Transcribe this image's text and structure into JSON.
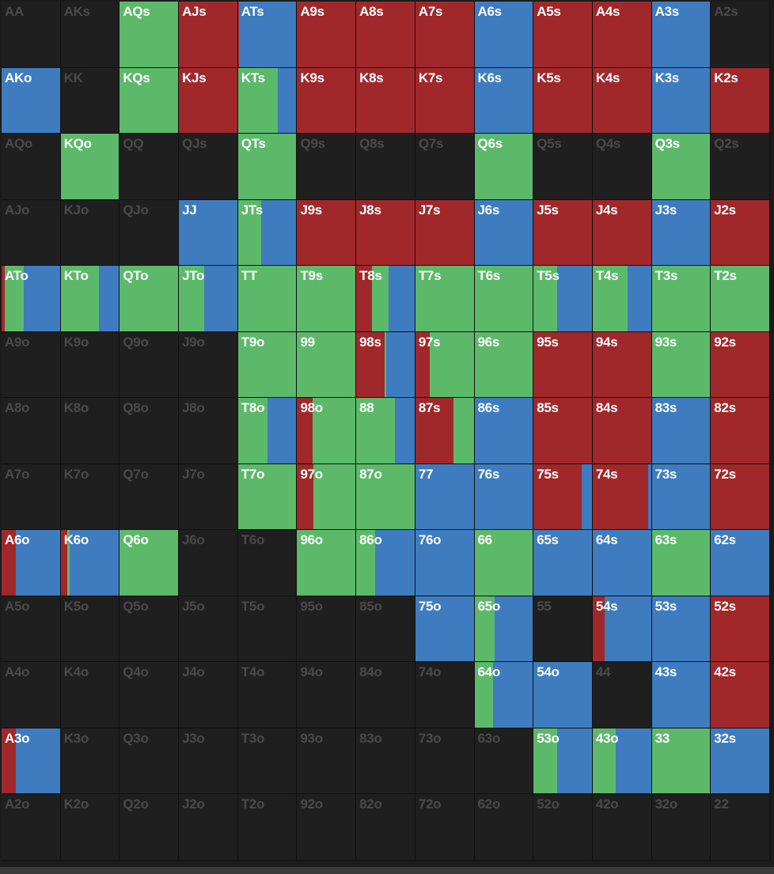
{
  "grid": {
    "colors": [
      "#a0282b",
      "#5cb96a",
      "#3e7cbf"
    ],
    "rows": [
      [
        {
          "hand": "AA"
        },
        {
          "hand": "AKs"
        },
        {
          "hand": "AQs",
          "mix": [
            0,
            100,
            0
          ]
        },
        {
          "hand": "AJs",
          "mix": [
            100,
            0,
            0
          ]
        },
        {
          "hand": "ATs",
          "mix": [
            2,
            0,
            98
          ]
        },
        {
          "hand": "A9s",
          "mix": [
            100,
            0,
            0
          ]
        },
        {
          "hand": "A8s",
          "mix": [
            100,
            0,
            0
          ]
        },
        {
          "hand": "A7s",
          "mix": [
            100,
            0,
            0
          ]
        },
        {
          "hand": "A6s",
          "mix": [
            0,
            0,
            100
          ]
        },
        {
          "hand": "A5s",
          "mix": [
            100,
            0,
            0
          ]
        },
        {
          "hand": "A4s",
          "mix": [
            100,
            0,
            0
          ]
        },
        {
          "hand": "A3s",
          "mix": [
            0,
            0,
            100
          ]
        },
        {
          "hand": "A2s"
        }
      ],
      [
        {
          "hand": "AKo",
          "mix": [
            0,
            0,
            100
          ]
        },
        {
          "hand": "KK"
        },
        {
          "hand": "KQs",
          "mix": [
            0,
            100,
            0
          ]
        },
        {
          "hand": "KJs",
          "mix": [
            100,
            0,
            0
          ]
        },
        {
          "hand": "KTs",
          "mix": [
            0,
            68,
            32
          ]
        },
        {
          "hand": "K9s",
          "mix": [
            100,
            0,
            0
          ]
        },
        {
          "hand": "K8s",
          "mix": [
            100,
            0,
            0
          ]
        },
        {
          "hand": "K7s",
          "mix": [
            100,
            0,
            0
          ]
        },
        {
          "hand": "K6s",
          "mix": [
            0,
            0,
            100
          ]
        },
        {
          "hand": "K5s",
          "mix": [
            100,
            0,
            0
          ]
        },
        {
          "hand": "K4s",
          "mix": [
            100,
            0,
            0
          ]
        },
        {
          "hand": "K3s",
          "mix": [
            0,
            0,
            100
          ]
        },
        {
          "hand": "K2s",
          "mix": [
            100,
            0,
            0
          ]
        }
      ],
      [
        {
          "hand": "AQo"
        },
        {
          "hand": "KQo",
          "mix": [
            0,
            100,
            0
          ]
        },
        {
          "hand": "QQ"
        },
        {
          "hand": "QJs"
        },
        {
          "hand": "QTs",
          "mix": [
            0,
            100,
            0
          ]
        },
        {
          "hand": "Q9s"
        },
        {
          "hand": "Q8s"
        },
        {
          "hand": "Q7s"
        },
        {
          "hand": "Q6s",
          "mix": [
            0,
            100,
            0
          ]
        },
        {
          "hand": "Q5s"
        },
        {
          "hand": "Q4s"
        },
        {
          "hand": "Q3s",
          "mix": [
            0,
            100,
            0
          ]
        },
        {
          "hand": "Q2s"
        }
      ],
      [
        {
          "hand": "AJo"
        },
        {
          "hand": "KJo"
        },
        {
          "hand": "QJo"
        },
        {
          "hand": "JJ",
          "mix": [
            0,
            0,
            100
          ]
        },
        {
          "hand": "JTs",
          "mix": [
            0,
            39,
            61
          ]
        },
        {
          "hand": "J9s",
          "mix": [
            100,
            0,
            0
          ]
        },
        {
          "hand": "J8s",
          "mix": [
            100,
            0,
            0
          ]
        },
        {
          "hand": "J7s",
          "mix": [
            100,
            0,
            0
          ]
        },
        {
          "hand": "J6s",
          "mix": [
            0,
            0,
            100
          ]
        },
        {
          "hand": "J5s",
          "mix": [
            100,
            0,
            0
          ]
        },
        {
          "hand": "J4s",
          "mix": [
            100,
            0,
            0
          ]
        },
        {
          "hand": "J3s",
          "mix": [
            0,
            0,
            100
          ]
        },
        {
          "hand": "J2s",
          "mix": [
            100,
            0,
            0
          ]
        }
      ],
      [
        {
          "hand": "ATo",
          "mix": [
            5,
            33,
            62
          ]
        },
        {
          "hand": "KTo",
          "mix": [
            0,
            66,
            34
          ]
        },
        {
          "hand": "QTo",
          "mix": [
            0,
            100,
            0
          ]
        },
        {
          "hand": "JTo",
          "mix": [
            0,
            44,
            56
          ]
        },
        {
          "hand": "TT",
          "mix": [
            0,
            100,
            0
          ]
        },
        {
          "hand": "T9s",
          "mix": [
            0,
            100,
            0
          ]
        },
        {
          "hand": "T8s",
          "mix": [
            27,
            29,
            44
          ]
        },
        {
          "hand": "T7s",
          "mix": [
            0,
            100,
            0
          ]
        },
        {
          "hand": "T6s",
          "mix": [
            0,
            100,
            0
          ]
        },
        {
          "hand": "T5s",
          "mix": [
            0,
            41,
            59
          ]
        },
        {
          "hand": "T4s",
          "mix": [
            0,
            60,
            40
          ]
        },
        {
          "hand": "T3s",
          "mix": [
            0,
            100,
            0
          ]
        },
        {
          "hand": "T2s",
          "mix": [
            0,
            100,
            0
          ]
        }
      ],
      [
        {
          "hand": "A9o"
        },
        {
          "hand": "K9o"
        },
        {
          "hand": "Q9o"
        },
        {
          "hand": "J9o"
        },
        {
          "hand": "T9o",
          "mix": [
            0,
            100,
            0
          ]
        },
        {
          "hand": "99",
          "mix": [
            0,
            100,
            0
          ]
        },
        {
          "hand": "98s",
          "mix": [
            48,
            4,
            48
          ]
        },
        {
          "hand": "97s",
          "mix": [
            25,
            75,
            0
          ]
        },
        {
          "hand": "96s",
          "mix": [
            0,
            100,
            0
          ]
        },
        {
          "hand": "95s",
          "mix": [
            100,
            0,
            0
          ]
        },
        {
          "hand": "94s",
          "mix": [
            100,
            0,
            0
          ]
        },
        {
          "hand": "93s",
          "mix": [
            0,
            100,
            0
          ]
        },
        {
          "hand": "92s",
          "mix": [
            100,
            0,
            0
          ]
        }
      ],
      [
        {
          "hand": "A8o"
        },
        {
          "hand": "K8o"
        },
        {
          "hand": "Q8o"
        },
        {
          "hand": "J8o"
        },
        {
          "hand": "T8o",
          "mix": [
            0,
            50,
            50
          ]
        },
        {
          "hand": "98o",
          "mix": [
            27,
            73,
            0
          ]
        },
        {
          "hand": "88",
          "mix": [
            0,
            66,
            34
          ]
        },
        {
          "hand": "87s",
          "mix": [
            65,
            35,
            0
          ]
        },
        {
          "hand": "86s",
          "mix": [
            0,
            0,
            100
          ]
        },
        {
          "hand": "85s",
          "mix": [
            100,
            0,
            0
          ]
        },
        {
          "hand": "84s",
          "mix": [
            100,
            0,
            0
          ]
        },
        {
          "hand": "83s",
          "mix": [
            0,
            0,
            100
          ]
        },
        {
          "hand": "82s",
          "mix": [
            100,
            0,
            0
          ]
        }
      ],
      [
        {
          "hand": "A7o"
        },
        {
          "hand": "K7o"
        },
        {
          "hand": "Q7o"
        },
        {
          "hand": "J7o"
        },
        {
          "hand": "T7o",
          "mix": [
            0,
            100,
            0
          ]
        },
        {
          "hand": "97o",
          "mix": [
            28,
            72,
            0
          ]
        },
        {
          "hand": "87o",
          "mix": [
            0,
            100,
            0
          ]
        },
        {
          "hand": "77",
          "mix": [
            0,
            0,
            100
          ]
        },
        {
          "hand": "76s",
          "mix": [
            0,
            0,
            100
          ]
        },
        {
          "hand": "75s",
          "mix": [
            83,
            0,
            17
          ]
        },
        {
          "hand": "74s",
          "mix": [
            95,
            0,
            5
          ]
        },
        {
          "hand": "73s",
          "mix": [
            0,
            0,
            100
          ]
        },
        {
          "hand": "72s",
          "mix": [
            100,
            0,
            0
          ]
        }
      ],
      [
        {
          "hand": "A6o",
          "mix": [
            24,
            0,
            76
          ]
        },
        {
          "hand": "K6o",
          "mix": [
            11,
            5,
            84
          ]
        },
        {
          "hand": "Q6o",
          "mix": [
            0,
            100,
            0
          ]
        },
        {
          "hand": "J6o"
        },
        {
          "hand": "T6o"
        },
        {
          "hand": "96o",
          "mix": [
            0,
            100,
            0
          ]
        },
        {
          "hand": "86o",
          "mix": [
            0,
            33,
            67
          ]
        },
        {
          "hand": "76o",
          "mix": [
            0,
            0,
            100
          ]
        },
        {
          "hand": "66",
          "mix": [
            0,
            100,
            0
          ]
        },
        {
          "hand": "65s",
          "mix": [
            0,
            0,
            100
          ]
        },
        {
          "hand": "64s",
          "mix": [
            0,
            0,
            100
          ]
        },
        {
          "hand": "63s",
          "mix": [
            0,
            100,
            0
          ]
        },
        {
          "hand": "62s",
          "mix": [
            0,
            0,
            100
          ]
        }
      ],
      [
        {
          "hand": "A5o"
        },
        {
          "hand": "K5o"
        },
        {
          "hand": "Q5o"
        },
        {
          "hand": "J5o"
        },
        {
          "hand": "T5o"
        },
        {
          "hand": "95o"
        },
        {
          "hand": "85o"
        },
        {
          "hand": "75o",
          "mix": [
            0,
            0,
            100
          ]
        },
        {
          "hand": "65o",
          "mix": [
            0,
            34,
            66
          ]
        },
        {
          "hand": "55"
        },
        {
          "hand": "54s",
          "mix": [
            21,
            0,
            79
          ]
        },
        {
          "hand": "53s",
          "mix": [
            0,
            0,
            100
          ]
        },
        {
          "hand": "52s",
          "mix": [
            100,
            0,
            0
          ]
        }
      ],
      [
        {
          "hand": "A4o"
        },
        {
          "hand": "K4o"
        },
        {
          "hand": "Q4o"
        },
        {
          "hand": "J4o"
        },
        {
          "hand": "T4o"
        },
        {
          "hand": "94o"
        },
        {
          "hand": "84o"
        },
        {
          "hand": "74o"
        },
        {
          "hand": "64o",
          "mix": [
            0,
            32,
            68
          ]
        },
        {
          "hand": "54o",
          "mix": [
            0,
            0,
            100
          ]
        },
        {
          "hand": "44"
        },
        {
          "hand": "43s",
          "mix": [
            0,
            0,
            100
          ]
        },
        {
          "hand": "42s",
          "mix": [
            100,
            0,
            0
          ]
        }
      ],
      [
        {
          "hand": "A3o",
          "mix": [
            24,
            0,
            76
          ]
        },
        {
          "hand": "K3o"
        },
        {
          "hand": "Q3o"
        },
        {
          "hand": "J3o"
        },
        {
          "hand": "T3o"
        },
        {
          "hand": "93o"
        },
        {
          "hand": "83o"
        },
        {
          "hand": "73o"
        },
        {
          "hand": "63o"
        },
        {
          "hand": "53o",
          "mix": [
            0,
            41,
            59
          ]
        },
        {
          "hand": "43o",
          "mix": [
            0,
            39,
            61
          ]
        },
        {
          "hand": "33",
          "mix": [
            0,
            100,
            0
          ]
        },
        {
          "hand": "32s",
          "mix": [
            0,
            0,
            100
          ]
        }
      ],
      [
        {
          "hand": "A2o"
        },
        {
          "hand": "K2o"
        },
        {
          "hand": "Q2o"
        },
        {
          "hand": "J2o"
        },
        {
          "hand": "T2o"
        },
        {
          "hand": "92o"
        },
        {
          "hand": "82o"
        },
        {
          "hand": "72o"
        },
        {
          "hand": "62o"
        },
        {
          "hand": "52o"
        },
        {
          "hand": "42o"
        },
        {
          "hand": "32o"
        },
        {
          "hand": "22"
        }
      ]
    ]
  }
}
